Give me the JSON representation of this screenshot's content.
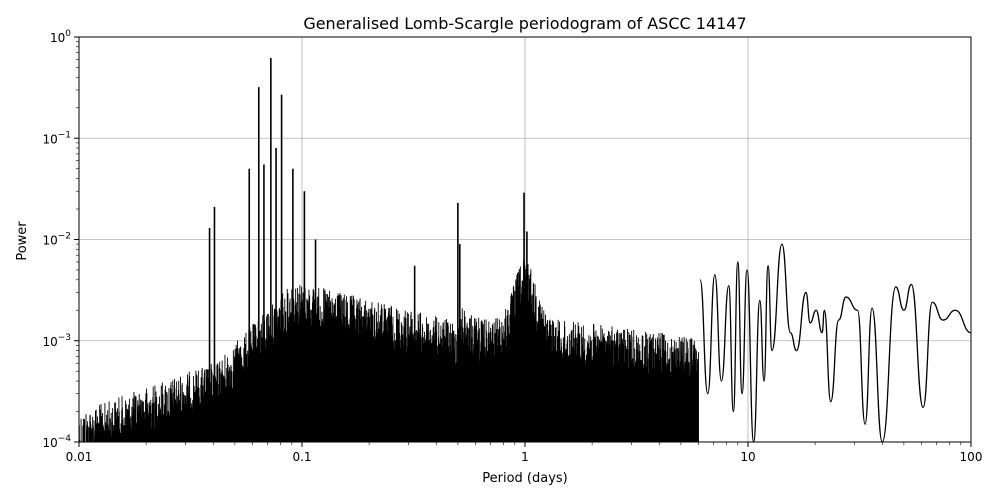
{
  "chart_data": {
    "type": "line",
    "title": "Generalised Lomb-Scargle periodogram of ASCC 14147",
    "xlabel": "Period (days)",
    "ylabel": "Power",
    "x_scale": "log",
    "y_scale": "log",
    "xlim": [
      0.01,
      100
    ],
    "ylim": [
      0.0001,
      1
    ],
    "grid": true,
    "line_color": "#000000",
    "x_ticks": [
      {
        "value": 0.01,
        "label": "0.01"
      },
      {
        "value": 0.1,
        "label": "0.1"
      },
      {
        "value": 1,
        "label": "1"
      },
      {
        "value": 10,
        "label": "10"
      },
      {
        "value": 100,
        "label": "100"
      }
    ],
    "y_ticks": [
      {
        "value": 0.0001,
        "base": "10",
        "exp": "−4"
      },
      {
        "value": 0.001,
        "base": "10",
        "exp": "−3"
      },
      {
        "value": 0.01,
        "base": "10",
        "exp": "−2"
      },
      {
        "value": 0.1,
        "base": "10",
        "exp": "−1"
      },
      {
        "value": 1,
        "base": "10",
        "exp": "0"
      }
    ],
    "peaks": [
      {
        "period": 0.0405,
        "power": 0.021
      },
      {
        "period": 0.0385,
        "power": 0.013
      },
      {
        "period": 0.064,
        "power": 0.32
      },
      {
        "period": 0.0725,
        "power": 0.62
      },
      {
        "period": 0.0675,
        "power": 0.055
      },
      {
        "period": 0.0765,
        "power": 0.08
      },
      {
        "period": 0.081,
        "power": 0.27
      },
      {
        "period": 0.058,
        "power": 0.05
      },
      {
        "period": 0.091,
        "power": 0.05
      },
      {
        "period": 0.1025,
        "power": 0.03
      },
      {
        "period": 0.115,
        "power": 0.01
      },
      {
        "period": 0.32,
        "power": 0.0055
      },
      {
        "period": 0.5,
        "power": 0.023
      },
      {
        "period": 0.51,
        "power": 0.009
      },
      {
        "period": 0.99,
        "power": 0.029
      },
      {
        "period": 1.02,
        "power": 0.012
      }
    ],
    "smooth_curve": [
      [
        6.1,
        0.004
      ],
      [
        6.6,
        0.0003
      ],
      [
        7.1,
        0.0045
      ],
      [
        7.6,
        0.0004
      ],
      [
        8.2,
        0.0035
      ],
      [
        8.6,
        0.0002
      ],
      [
        9.0,
        0.006
      ],
      [
        9.4,
        0.0003
      ],
      [
        9.9,
        0.005
      ],
      [
        10.6,
        0.0001
      ],
      [
        11.3,
        0.0025
      ],
      [
        11.8,
        0.0004
      ],
      [
        12.3,
        0.0055
      ],
      [
        12.8,
        0.0008
      ],
      [
        14.2,
        0.009
      ],
      [
        15.5,
        0.0012
      ],
      [
        16.5,
        0.0008
      ],
      [
        18.2,
        0.003
      ],
      [
        19.0,
        0.0015
      ],
      [
        20.2,
        0.002
      ],
      [
        21.5,
        0.0012
      ],
      [
        22.0,
        0.002
      ],
      [
        23.5,
        0.00025
      ],
      [
        25.5,
        0.0016
      ],
      [
        27.5,
        0.0027
      ],
      [
        31.0,
        0.002
      ],
      [
        33.5,
        0.00015
      ],
      [
        36.0,
        0.0021
      ],
      [
        40.0,
        0.0001
      ],
      [
        46.0,
        0.0034
      ],
      [
        50.0,
        0.002
      ],
      [
        54.0,
        0.0036
      ],
      [
        61.0,
        0.00022
      ],
      [
        67.0,
        0.0024
      ],
      [
        75.0,
        0.0016
      ],
      [
        85.0,
        0.002
      ],
      [
        100.0,
        0.0012
      ]
    ]
  }
}
